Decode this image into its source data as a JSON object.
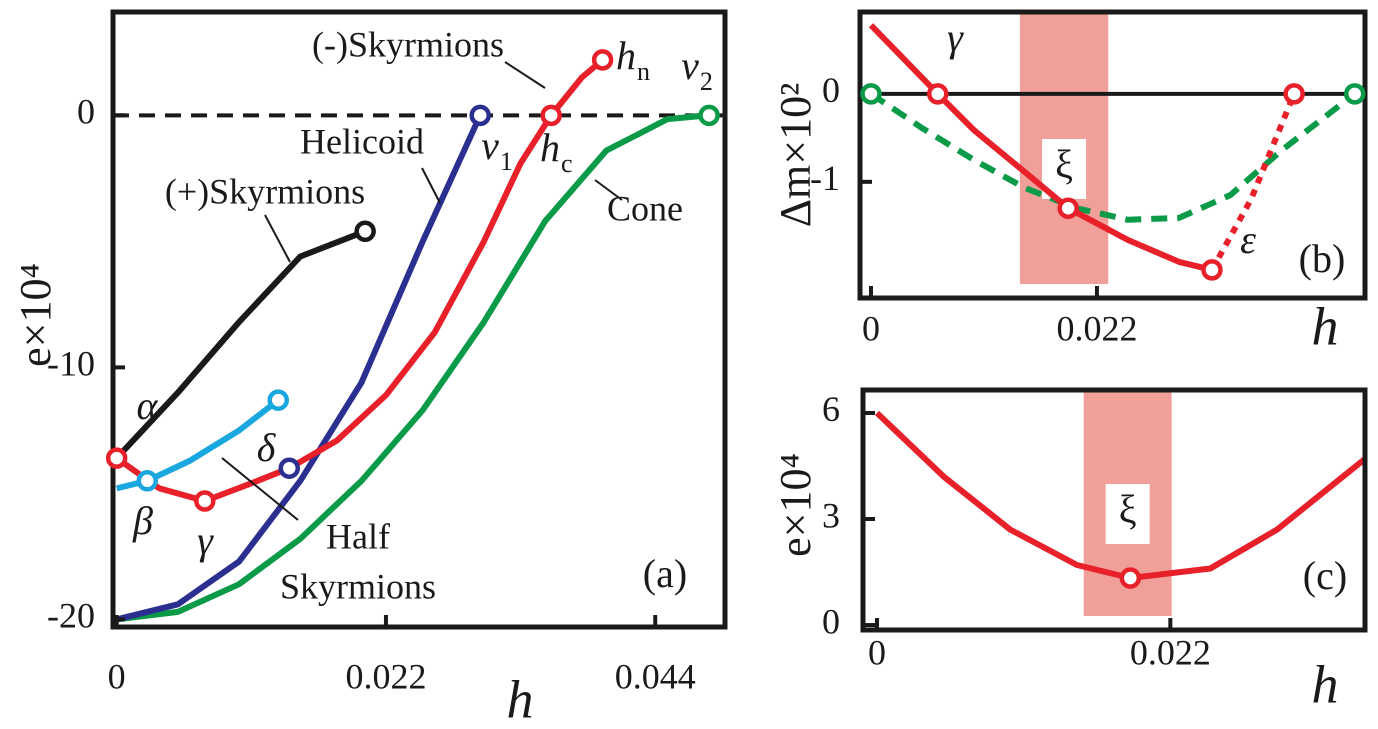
{
  "chart_data": [
    {
      "type": "line",
      "panel_label": "(a)",
      "x_label": "h",
      "y_label": "e×10⁴",
      "xlim": [
        -0.0003,
        0.0497
      ],
      "ylim": [
        -20.3,
        4.1
      ],
      "xticks": [
        0,
        0.022,
        0.044
      ],
      "yticks": [
        0,
        -10,
        -20
      ],
      "hline": {
        "y": 0,
        "style": "dashed"
      },
      "series": [
        {
          "color": "#0a9a48",
          "line_style": "solid",
          "x": [
            0,
            0.005,
            0.01,
            0.015,
            0.02,
            0.025,
            0.03,
            0.035,
            0.04,
            0.045,
            0.0484
          ],
          "values": [
            -20,
            -19.7,
            -18.6,
            -16.8,
            -14.5,
            -11.7,
            -8.2,
            -4.2,
            -1.4,
            -0.15,
            0
          ]
        },
        {
          "color": "#2b2f8f",
          "line_style": "solid",
          "x": [
            0,
            0.005,
            0.01,
            0.015,
            0.02,
            0.025,
            0.0297
          ],
          "values": [
            -20,
            -19.4,
            -17.7,
            -14.5,
            -10.6,
            -5.0,
            0
          ]
        },
        {
          "color": "#e8202a",
          "line_style": "solid",
          "x": [
            0,
            0.0035,
            0.0072,
            0.011,
            0.0141,
            0.018,
            0.022,
            0.026,
            0.03,
            0.033,
            0.0355,
            0.038,
            0.0397
          ],
          "values": [
            -13.6,
            -14.8,
            -15.3,
            -14.6,
            -14.0,
            -12.9,
            -11.1,
            -8.6,
            -5.0,
            -1.9,
            0,
            1.5,
            2.2
          ]
        },
        {
          "color": "#1a1a1a",
          "line_style": "solid",
          "x": [
            0,
            0.005,
            0.01,
            0.015,
            0.0203
          ],
          "values": [
            -13.6,
            -11.0,
            -8.2,
            -5.6,
            -4.6
          ]
        },
        {
          "color": "#1aa7e0",
          "line_style": "solid",
          "x": [
            0,
            0.0025,
            0.006,
            0.01,
            0.0132
          ],
          "values": [
            -14.8,
            -14.5,
            -13.7,
            -12.5,
            -11.3
          ]
        }
      ],
      "points": [
        {
          "x": 0,
          "y": -13.6,
          "color": "#e8202a",
          "label": "α"
        },
        {
          "x": 0.0025,
          "y": -14.5,
          "color": "#1aa7e0",
          "label": "β"
        },
        {
          "x": 0.0072,
          "y": -15.3,
          "color": "#e8202a",
          "label": "γ"
        },
        {
          "x": 0.0141,
          "y": -14.0,
          "color": "#2b2f8f",
          "label": "δ"
        },
        {
          "x": 0.0297,
          "y": 0,
          "color": "#2b2f8f",
          "label": "ν",
          "sub": "1"
        },
        {
          "x": 0.0355,
          "y": 0,
          "color": "#e8202a",
          "label": "h",
          "sub": "c"
        },
        {
          "x": 0.0397,
          "y": 2.2,
          "color": "#e8202a",
          "label": "h",
          "sub": "n"
        },
        {
          "x": 0.0484,
          "y": 0,
          "color": "#0a9a48",
          "label": "ν",
          "sub": "2"
        },
        {
          "x": 0.0203,
          "y": -4.6,
          "color": "#1a1a1a"
        },
        {
          "x": 0.0132,
          "y": -11.3,
          "color": "#1aa7e0"
        }
      ],
      "annotations": [
        "(-)Skyrmions",
        "Helicoid",
        "(+)Skyrmions",
        "Cone",
        "Half",
        "Skyrmions"
      ]
    },
    {
      "type": "line",
      "panel_label": "(b)",
      "x_label": "h",
      "y_label": "Δm×10²",
      "xlim": [
        -0.00107,
        0.0481
      ],
      "ylim": [
        -2.32,
        0.93
      ],
      "xticks": [
        0,
        0.022
      ],
      "yticks": [
        0,
        -1
      ],
      "hline": {
        "y": 0,
        "style": "solid"
      },
      "band": [
        0.0145,
        0.0231
      ],
      "band_color": "#f0a098",
      "band_label": "ξ",
      "series": [
        {
          "color": "#0a9a48",
          "line_style": "dashed",
          "x": [
            0,
            0.005,
            0.01,
            0.015,
            0.02,
            0.025,
            0.03,
            0.035,
            0.04,
            0.0471
          ],
          "values": [
            0,
            -0.39,
            -0.75,
            -1.07,
            -1.3,
            -1.43,
            -1.41,
            -1.15,
            -0.64,
            0
          ]
        },
        {
          "color": "#e8202a",
          "line_style": "solid",
          "x": [
            0,
            0.0065,
            0.01,
            0.015,
            0.0192,
            0.025,
            0.03,
            0.0332
          ],
          "values": [
            0.78,
            0,
            -0.41,
            -0.89,
            -1.3,
            -1.66,
            -1.91,
            -2.0
          ]
        },
        {
          "color": "#e8202a",
          "line_style": "dotted",
          "x": [
            0.0332,
            0.037,
            0.0412
          ],
          "values": [
            -2.0,
            -1.2,
            0
          ]
        }
      ],
      "points": [
        {
          "x": 0,
          "y": 0,
          "color": "#0a9a48"
        },
        {
          "x": 0.0471,
          "y": 0,
          "color": "#0a9a48"
        },
        {
          "x": 0.0065,
          "y": 0,
          "color": "#e8202a",
          "label": "γ"
        },
        {
          "x": 0.0192,
          "y": -1.3,
          "color": "#e8202a"
        },
        {
          "x": 0.0332,
          "y": -2.0,
          "color": "#e8202a",
          "label": "ε"
        },
        {
          "x": 0.0412,
          "y": 0,
          "color": "#e8202a"
        }
      ]
    },
    {
      "type": "line",
      "panel_label": "(c)",
      "x_label": "h",
      "y_label": "e×10⁴",
      "xlim": [
        -0.00105,
        0.0366
      ],
      "ylim": [
        -0.14,
        6.65
      ],
      "xticks": [
        0,
        0.022
      ],
      "yticks": [
        0,
        3,
        6
      ],
      "band": [
        0.0155,
        0.0221
      ],
      "band_color": "#f0a098",
      "band_label": "ξ",
      "series": [
        {
          "color": "#e8202a",
          "line_style": "solid",
          "x": [
            0,
            0.005,
            0.01,
            0.015,
            0.019,
            0.025,
            0.03,
            0.0366
          ],
          "values": [
            6.0,
            4.2,
            2.7,
            1.7,
            1.33,
            1.6,
            2.7,
            4.7
          ]
        }
      ],
      "points": [
        {
          "x": 0.019,
          "y": 1.33,
          "color": "#e8202a"
        }
      ]
    }
  ]
}
